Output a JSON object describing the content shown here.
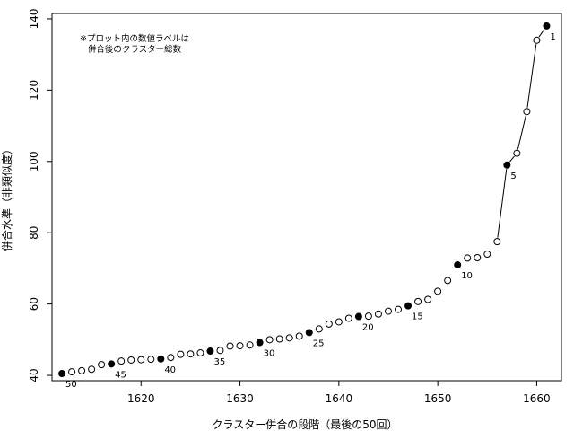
{
  "chart_data": {
    "type": "scatter",
    "xlabel": "クラスター併合の段階（最後の50回）",
    "ylabel": "併合水準（非類似度）",
    "note_lines": [
      "※プロット内の数値ラベルは",
      "併合後のクラスター総数"
    ],
    "xlim": [
      1611,
      1662.5
    ],
    "ylim": [
      38.5,
      141.5
    ],
    "x_ticks": [
      1620,
      1630,
      1640,
      1650,
      1660
    ],
    "y_ticks": [
      40,
      60,
      80,
      100,
      120,
      140
    ],
    "x": [
      1612,
      1613,
      1614,
      1615,
      1616,
      1617,
      1618,
      1619,
      1620,
      1621,
      1622,
      1623,
      1624,
      1625,
      1626,
      1627,
      1628,
      1629,
      1630,
      1631,
      1632,
      1633,
      1634,
      1635,
      1636,
      1637,
      1638,
      1639,
      1640,
      1641,
      1642,
      1643,
      1644,
      1645,
      1646,
      1647,
      1648,
      1649,
      1650,
      1651,
      1652,
      1653,
      1654,
      1655,
      1656,
      1657,
      1658,
      1659,
      1660,
      1661
    ],
    "y": [
      40.5,
      41.0,
      41.3,
      41.7,
      43.0,
      43.2,
      44.0,
      44.3,
      44.4,
      44.5,
      44.6,
      45.0,
      45.9,
      46.0,
      46.3,
      46.8,
      47.0,
      48.2,
      48.3,
      48.5,
      49.2,
      50.0,
      50.2,
      50.5,
      51.0,
      52.0,
      53.0,
      54.4,
      55.0,
      56.0,
      56.5,
      56.6,
      57.2,
      58.0,
      58.5,
      59.5,
      60.7,
      61.3,
      63.6,
      66.6,
      71.0,
      72.9,
      73.0,
      74.0,
      77.5,
      99.0,
      102.3,
      114.0,
      134.0,
      138.0
    ],
    "highlighted": [
      {
        "x": 1661,
        "y": 138.0,
        "label": "1"
      },
      {
        "x": 1657,
        "y": 99.0,
        "label": "5"
      },
      {
        "x": 1652,
        "y": 71.0,
        "label": "10"
      },
      {
        "x": 1647,
        "y": 59.5,
        "label": "15"
      },
      {
        "x": 1642,
        "y": 56.5,
        "label": "20"
      },
      {
        "x": 1637,
        "y": 52.0,
        "label": "25"
      },
      {
        "x": 1632,
        "y": 49.2,
        "label": "30"
      },
      {
        "x": 1627,
        "y": 46.8,
        "label": "35"
      },
      {
        "x": 1622,
        "y": 44.6,
        "label": "40"
      },
      {
        "x": 1617,
        "y": 43.2,
        "label": "45"
      },
      {
        "x": 1612,
        "y": 40.5,
        "label": "50"
      }
    ],
    "line_segments_x": [
      [
        1656,
        1657
      ],
      [
        1657,
        1658
      ],
      [
        1658,
        1659
      ],
      [
        1659,
        1660
      ],
      [
        1660,
        1661
      ]
    ],
    "grid": false,
    "legend": "none"
  }
}
